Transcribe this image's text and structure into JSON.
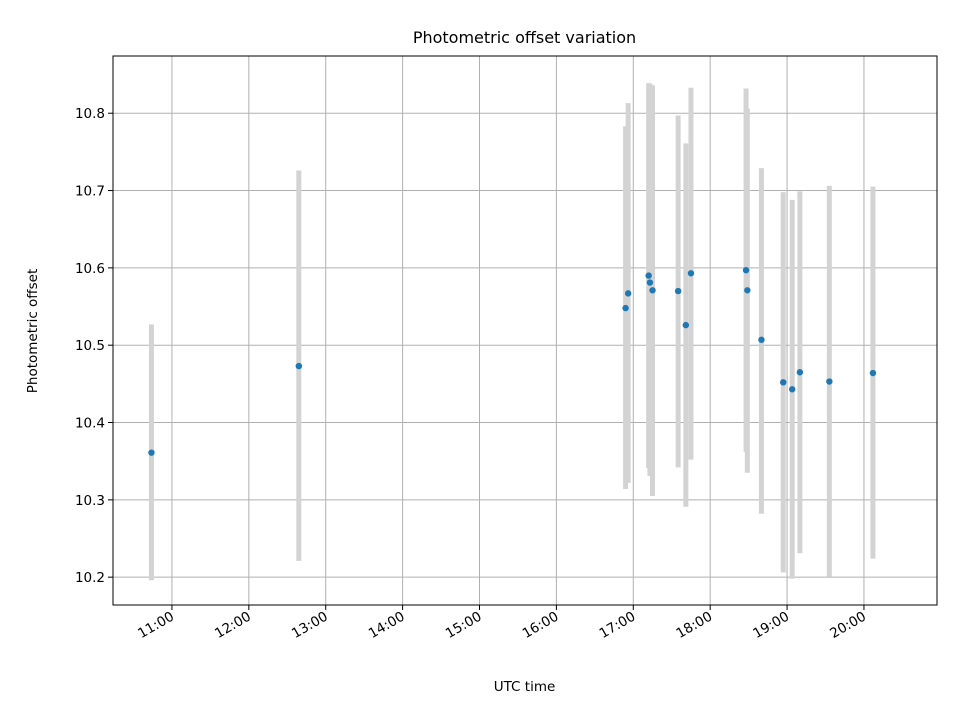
{
  "chart_data": {
    "type": "scatter",
    "title": "Photometric offset variation",
    "xlabel": "UTC time",
    "ylabel": "Photometric offset",
    "grid": true,
    "legend": "none",
    "xlim": [
      "10:14",
      "20:57"
    ],
    "ylim": [
      10.164,
      10.874
    ],
    "x_ticks": [
      "11:00",
      "12:00",
      "13:00",
      "14:00",
      "15:00",
      "16:00",
      "17:00",
      "18:00",
      "19:00",
      "20:00"
    ],
    "y_ticks": [
      "10.2",
      "10.3",
      "10.4",
      "10.5",
      "10.6",
      "10.7",
      "10.8"
    ],
    "colors": {
      "point": "#1f77b4",
      "errorbar": "#d3d3d3",
      "grid": "#b0b0b0"
    },
    "series": [
      {
        "points": [
          {
            "x": "10:44",
            "y": 10.361,
            "ylow": 10.196,
            "yhigh": 10.527
          },
          {
            "x": "12:39",
            "y": 10.473,
            "ylow": 10.221,
            "yhigh": 10.726
          },
          {
            "x": "16:54",
            "y": 10.548,
            "ylow": 10.314,
            "yhigh": 10.783
          },
          {
            "x": "16:56",
            "y": 10.567,
            "ylow": 10.322,
            "yhigh": 10.813
          },
          {
            "x": "17:12",
            "y": 10.59,
            "ylow": 10.341,
            "yhigh": 10.839
          },
          {
            "x": "17:13",
            "y": 10.581,
            "ylow": 10.331,
            "yhigh": 10.838
          },
          {
            "x": "17:15",
            "y": 10.571,
            "ylow": 10.305,
            "yhigh": 10.836
          },
          {
            "x": "17:35",
            "y": 10.57,
            "ylow": 10.342,
            "yhigh": 10.797
          },
          {
            "x": "17:41",
            "y": 10.526,
            "ylow": 10.291,
            "yhigh": 10.761
          },
          {
            "x": "17:45",
            "y": 10.593,
            "ylow": 10.352,
            "yhigh": 10.833
          },
          {
            "x": "18:28",
            "y": 10.597,
            "ylow": 10.362,
            "yhigh": 10.832
          },
          {
            "x": "18:29",
            "y": 10.571,
            "ylow": 10.335,
            "yhigh": 10.806
          },
          {
            "x": "18:40",
            "y": 10.507,
            "ylow": 10.282,
            "yhigh": 10.729
          },
          {
            "x": "18:57",
            "y": 10.452,
            "ylow": 10.206,
            "yhigh": 10.698
          },
          {
            "x": "19:04",
            "y": 10.443,
            "ylow": 10.198,
            "yhigh": 10.688
          },
          {
            "x": "19:10",
            "y": 10.465,
            "ylow": 10.231,
            "yhigh": 10.699
          },
          {
            "x": "19:33",
            "y": 10.453,
            "ylow": 10.201,
            "yhigh": 10.706
          },
          {
            "x": "20:07",
            "y": 10.464,
            "ylow": 10.224,
            "yhigh": 10.705
          }
        ]
      }
    ]
  }
}
